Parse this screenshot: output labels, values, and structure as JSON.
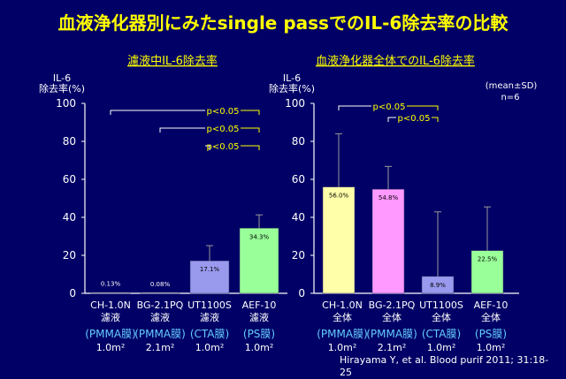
{
  "title": "血液浄化器別にみたsingle passでのIL-6除去率の比較",
  "legend_note": "(mean±SD)",
  "n_note": "n=6",
  "source": "Hirayama Y, et al. Blood purif 2011; 31:18-25",
  "colors": {
    "background": "#000066",
    "title": "#ffff00",
    "axis": "#ffffff",
    "annot": "#ffff00",
    "membrane": "#66ccff"
  },
  "chart_data": [
    {
      "type": "bar",
      "title": "濾液中IL-6除去率",
      "ylabel": [
        "IL-6",
        "除去率(%)"
      ],
      "ylim": [
        0,
        100
      ],
      "yticks": [
        0,
        20,
        40,
        60,
        80,
        100
      ],
      "categories": [
        "CH-1.0N",
        "BG-2.1PQ",
        "UT1100S",
        "AEF-10"
      ],
      "category_sublabel": [
        "濾液",
        "濾液",
        "濾液",
        "濾液"
      ],
      "membranes": [
        "(PMMA膜)",
        "(PMMA膜)",
        "(CTA膜)",
        "(PS膜)"
      ],
      "areas": [
        "1.0m²",
        "2.1m²",
        "1.0m²",
        "1.0m²"
      ],
      "values": [
        0.13,
        0.08,
        17.1,
        34.3
      ],
      "value_labels": [
        "0.13%",
        "0.08%",
        "17.1%",
        "34.3%"
      ],
      "errors": [
        0,
        0,
        8,
        7
      ],
      "bar_colors": [
        "#ffffff",
        "#ffffff",
        "#9999ee",
        "#99ff99"
      ],
      "significance": [
        {
          "from": 0,
          "to": 3,
          "label": "p<0.05"
        },
        {
          "from": 1,
          "to": 3,
          "label": "p<0.05"
        },
        {
          "from": 2,
          "to": 3,
          "label": "p<0.05"
        }
      ]
    },
    {
      "type": "bar",
      "title": "血液浄化器全体でのIL-6除去率",
      "ylabel": [
        "IL-6",
        "除去率(%)"
      ],
      "ylim": [
        0,
        100
      ],
      "yticks": [
        0,
        20,
        40,
        60,
        80,
        100
      ],
      "categories": [
        "CH-1.0N",
        "BG-2.1PQ",
        "UT1100S",
        "AEF-10"
      ],
      "category_sublabel": [
        "全体",
        "全体",
        "全体",
        "全体"
      ],
      "membranes": [
        "(PMMA膜)",
        "(PMMA膜)",
        "(CTA膜)",
        "(PS膜)"
      ],
      "areas": [
        "1.0m²",
        "2.1m²",
        "1.0m²",
        "1.0m²"
      ],
      "values": [
        56.0,
        54.8,
        8.9,
        22.5
      ],
      "value_labels": [
        "56.0%",
        "54.8%",
        "8.9%",
        "22.5%"
      ],
      "errors": [
        28,
        12,
        34,
        23
      ],
      "bar_colors": [
        "#ffffaa",
        "#ff99ff",
        "#9999ee",
        "#99ff99"
      ],
      "significance": [
        {
          "from": 0,
          "to": 2,
          "label": "p<0.05"
        },
        {
          "from": 1,
          "to": 2,
          "label": "p<0.05"
        }
      ]
    }
  ]
}
